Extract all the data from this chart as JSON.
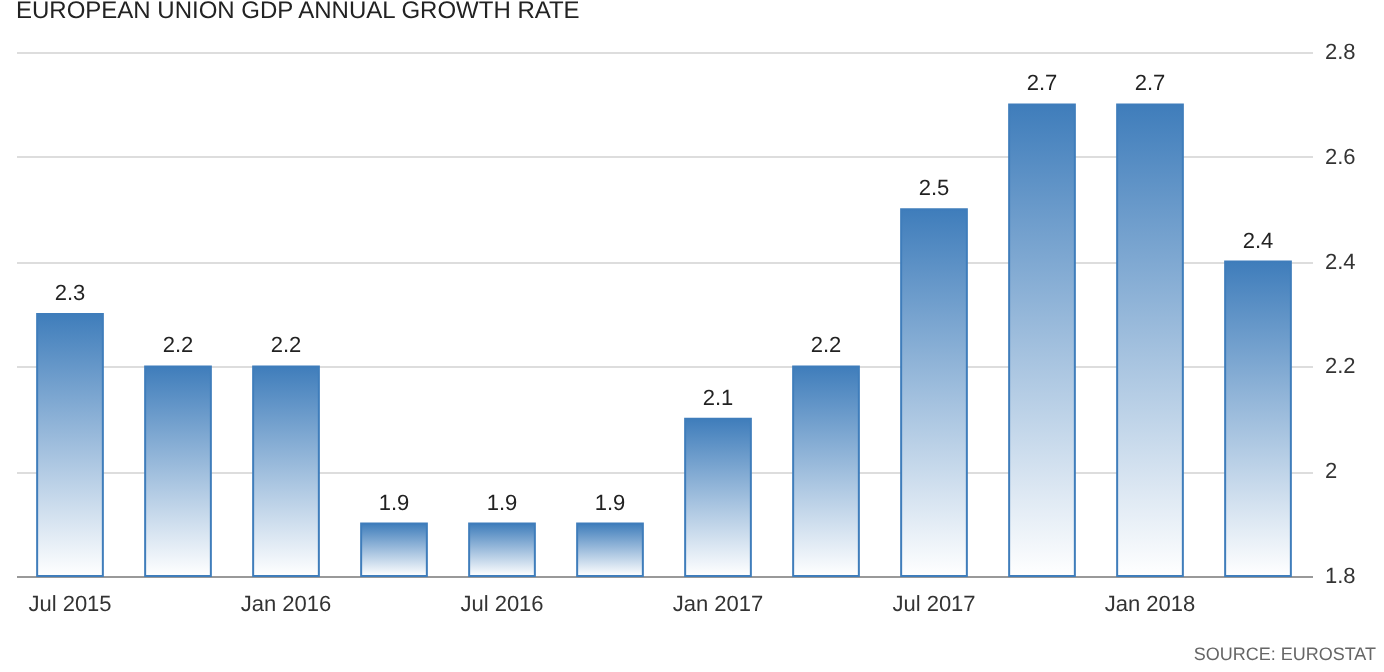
{
  "chart_data": {
    "type": "bar",
    "title": "EUROPEAN UNION GDP ANNUAL GROWTH RATE",
    "categories": [
      "Jul 2015",
      null,
      "Jan 2016",
      null,
      "Jul 2016",
      null,
      "Jan 2017",
      null,
      "Jul 2017",
      null,
      "Jan 2018",
      null
    ],
    "values": [
      2.3,
      2.2,
      2.2,
      1.9,
      1.9,
      1.9,
      2.1,
      2.2,
      2.5,
      2.7,
      2.7,
      2.4
    ],
    "color": "#3f7dbb",
    "ylim": [
      1.8,
      2.8
    ],
    "yticks": [
      1.8,
      2,
      2.2,
      2.4,
      2.6,
      2.8
    ],
    "grid": "y",
    "data_labels": true,
    "annotations": [
      "SOURCE: EUROSTAT"
    ]
  }
}
